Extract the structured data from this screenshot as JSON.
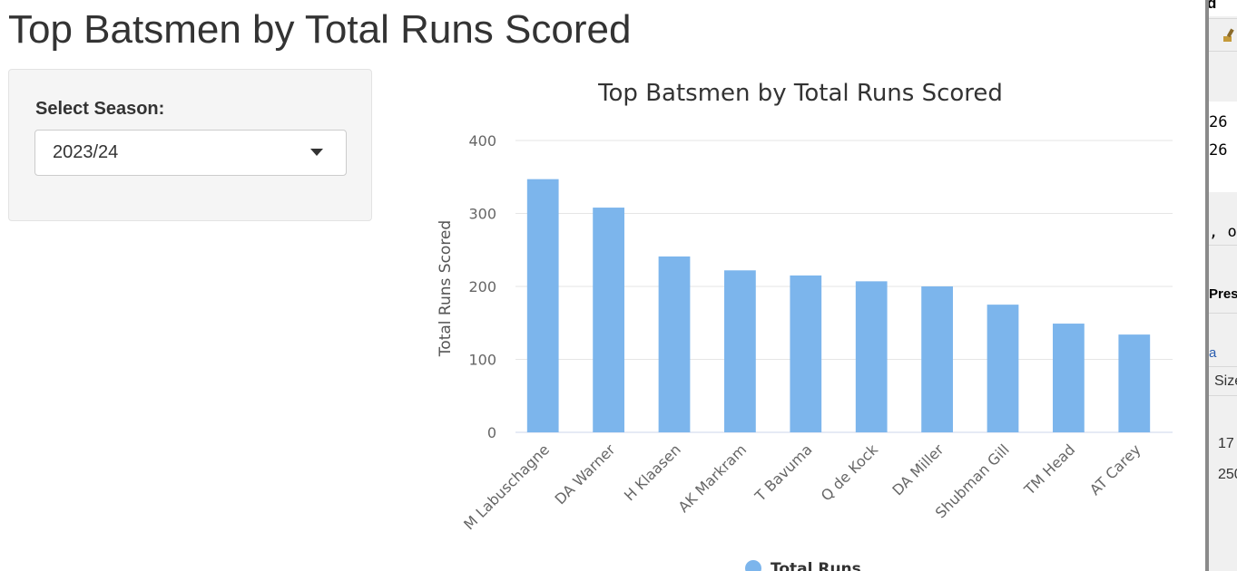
{
  "page": {
    "title": "Top Batsmen by Total Runs Scored"
  },
  "sidebar": {
    "season_label": "Select Season:",
    "season_value": "2023/24"
  },
  "chart_data": {
    "type": "bar",
    "title": "Top Batsmen by Total Runs Scored",
    "xlabel": "",
    "ylabel": "Total Runs Scored",
    "ylim": [
      0,
      400
    ],
    "yticks": [
      0,
      100,
      200,
      300,
      400
    ],
    "grid": true,
    "legend": "bottom-center",
    "bar_color": "#7cb5ec",
    "categories": [
      "M Labuschagne",
      "DA Warner",
      "H Klaasen",
      "AK Markram",
      "T Bavuma",
      "Q de Kock",
      "DA Miller",
      "Shubman Gill",
      "TM Head",
      "AT Carey"
    ],
    "series": [
      {
        "name": "Total Runs",
        "values": [
          347,
          308,
          241,
          222,
          215,
          207,
          200,
          175,
          149,
          134
        ]
      }
    ]
  },
  "right_panel": {
    "items": [
      {
        "text": "d"
      },
      {
        "text": "26"
      },
      {
        "text": "26"
      },
      {
        "text": ", o"
      },
      {
        "text": "Pres"
      },
      {
        "text": "a"
      },
      {
        "text": "Size"
      },
      {
        "text": "17"
      },
      {
        "text": "250"
      }
    ],
    "toolbar_icon": "brush-icon"
  }
}
